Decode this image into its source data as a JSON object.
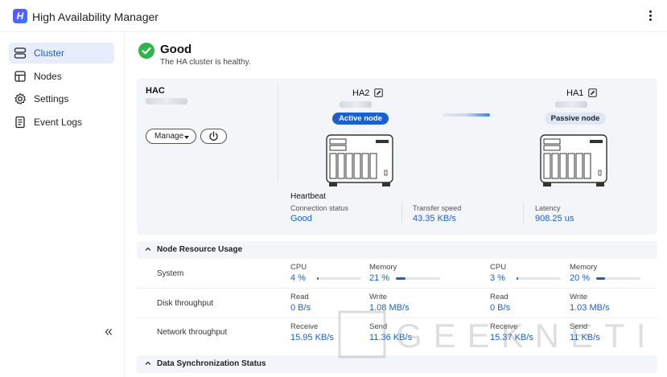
{
  "app": {
    "title": "High Availability Manager",
    "logo_letter": "H"
  },
  "sidebar": {
    "items": [
      {
        "label": "Cluster",
        "icon": "server-stack-icon",
        "active": true
      },
      {
        "label": "Nodes",
        "icon": "nodes-icon",
        "active": false
      },
      {
        "label": "Settings",
        "icon": "gear-icon",
        "active": false
      },
      {
        "label": "Event Logs",
        "icon": "log-icon",
        "active": false
      }
    ],
    "collapse_glyph": "«"
  },
  "status": {
    "title": "Good",
    "subtitle": "The HA cluster is healthy.",
    "color": "#2fb44a"
  },
  "cluster": {
    "name": "HAC",
    "manage_label": "Manage",
    "nodes": [
      {
        "name": "HA2",
        "role": "Active node"
      },
      {
        "name": "HA1",
        "role": "Passive node"
      }
    ]
  },
  "heartbeat": {
    "title": "Heartbeat",
    "metrics": [
      {
        "label": "Connection status",
        "value": "Good"
      },
      {
        "label": "Transfer speed",
        "value": "43.35 KB/s"
      },
      {
        "label": "Latency",
        "value": "908.25 us"
      }
    ]
  },
  "resources": {
    "title": "Node Resource Usage",
    "rows": [
      {
        "label": "System",
        "cells": [
          {
            "label": "CPU",
            "value": "4 %",
            "level": 0.04
          },
          {
            "label": "Memory",
            "value": "21 %",
            "level": 0.21
          },
          {
            "label": "CPU",
            "value": "3 %",
            "level": 0.03
          },
          {
            "label": "Memory",
            "value": "20 %",
            "level": 0.2
          }
        ]
      },
      {
        "label": "Disk throughput",
        "cells": [
          {
            "label": "Read",
            "value": "0 B/s"
          },
          {
            "label": "Write",
            "value": "1.08 MB/s"
          },
          {
            "label": "Read",
            "value": "0 B/s"
          },
          {
            "label": "Write",
            "value": "1.03 MB/s"
          }
        ]
      },
      {
        "label": "Network throughput",
        "cells": [
          {
            "label": "Receive",
            "value": "15.95 KB/s"
          },
          {
            "label": "Send",
            "value": "11.36 KB/s"
          },
          {
            "label": "Receive",
            "value": "15.37 KB/s"
          },
          {
            "label": "Send",
            "value": "11 KB/s"
          }
        ]
      }
    ]
  },
  "sync": {
    "title": "Data Synchronization Status"
  },
  "watermark": {
    "text": "GEEKNETIC"
  },
  "colors": {
    "accent": "#1b5fce",
    "card_bg": "#f3f5f9",
    "success": "#2fb44a"
  }
}
